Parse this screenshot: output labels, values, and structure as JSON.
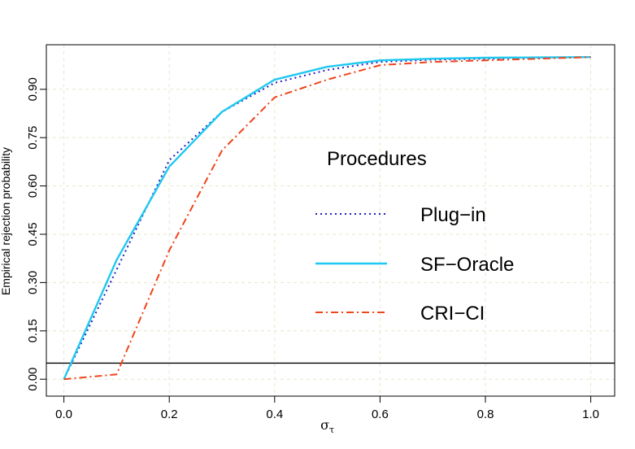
{
  "chart_data": {
    "type": "line",
    "title": "",
    "xlabel": {
      "main": "σ",
      "sub": "τ"
    },
    "ylabel": "Empirical rejection probability",
    "xlim": [
      -0.04,
      1.04
    ],
    "ylim": [
      -0.04,
      1.04
    ],
    "xticks": [
      0.0,
      0.2,
      0.4,
      0.6,
      0.8,
      1.0
    ],
    "xtick_labels": [
      "0.0",
      "0.2",
      "0.4",
      "0.6",
      "0.8",
      "1.0"
    ],
    "yticks": [
      0.0,
      0.15,
      0.3,
      0.45,
      0.6,
      0.75,
      0.9
    ],
    "ytick_labels": [
      "0.00",
      "0.15",
      "0.30",
      "0.45",
      "0.60",
      "0.75",
      "0.90"
    ],
    "grid": true,
    "reference_line": {
      "y": 0.05,
      "color": "#000000"
    },
    "x": [
      0.0,
      0.1,
      0.2,
      0.3,
      0.4,
      0.5,
      0.6,
      0.7,
      0.8,
      0.9,
      1.0
    ],
    "series": [
      {
        "name": "Plug−in",
        "values": [
          0.0,
          0.34,
          0.68,
          0.83,
          0.92,
          0.96,
          0.985,
          0.992,
          0.995,
          0.998,
          1.0
        ],
        "color": "#1f1fbf",
        "style": "dotted"
      },
      {
        "name": "SF−Oracle",
        "values": [
          0.0,
          0.37,
          0.66,
          0.83,
          0.93,
          0.97,
          0.99,
          0.995,
          0.998,
          0.999,
          1.0
        ],
        "color": "#1ec8f0",
        "style": "solid"
      },
      {
        "name": "CRI−CI",
        "values": [
          0.0,
          0.015,
          0.4,
          0.71,
          0.875,
          0.93,
          0.975,
          0.985,
          0.99,
          0.995,
          1.0
        ],
        "color": "#f0441a",
        "style": "dashdot"
      }
    ],
    "legend": {
      "title": "Procedures",
      "position": "center-right"
    }
  }
}
